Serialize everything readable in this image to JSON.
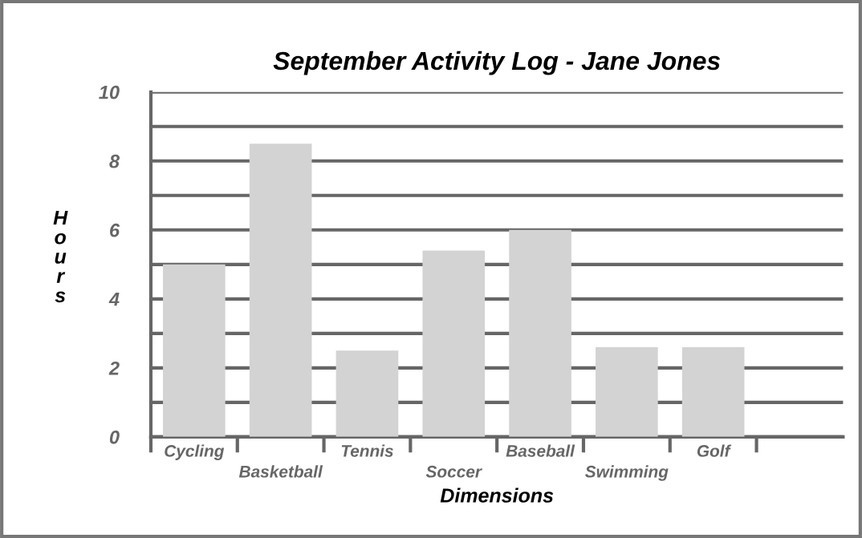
{
  "chart_data": {
    "type": "bar",
    "title": "September Activity Log - Jane Jones",
    "xlabel": "Dimensions",
    "ylabel": "Hours",
    "categories": [
      "Cycling",
      "Basketball",
      "Tennis",
      "Soccer",
      "Baseball",
      "Swimming",
      "Golf",
      null
    ],
    "values": [
      5,
      8.5,
      2.5,
      5.4,
      6,
      2.6,
      2.6,
      null
    ],
    "color": "#d3d3d3",
    "ylim": [
      0,
      10
    ],
    "yticks": [
      0,
      {
        "value": 1,
        "label": null
      },
      2,
      {
        "value": 3,
        "label": null
      },
      4,
      {
        "value": 5,
        "label": null
      },
      6,
      {
        "value": 7,
        "label": null
      },
      8,
      {
        "value": 9,
        "label": null
      },
      10
    ],
    "grid": "y"
  }
}
